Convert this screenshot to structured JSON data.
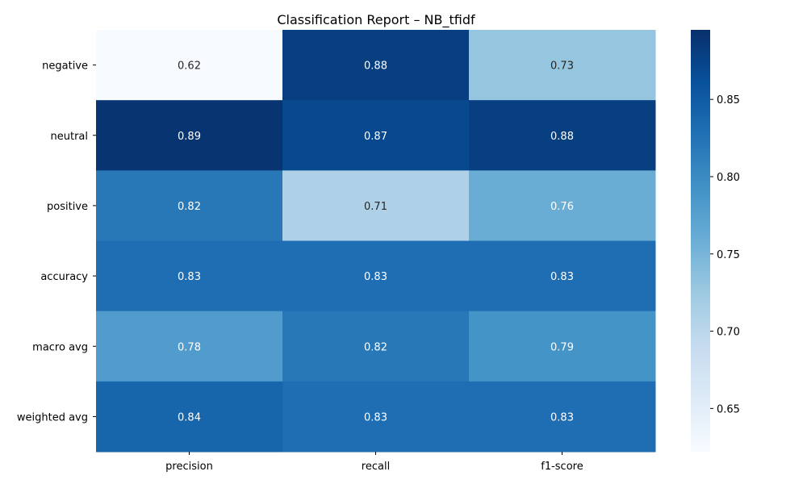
{
  "chart_data": {
    "type": "heatmap",
    "title": "Classification Report – NB_tfidf",
    "rows": [
      "negative",
      "neutral",
      "positive",
      "accuracy",
      "macro avg",
      "weighted avg"
    ],
    "columns": [
      "precision",
      "recall",
      "f1-score"
    ],
    "values": [
      [
        0.62,
        0.88,
        0.73
      ],
      [
        0.89,
        0.87,
        0.88
      ],
      [
        0.82,
        0.71,
        0.76
      ],
      [
        0.83,
        0.83,
        0.83
      ],
      [
        0.78,
        0.82,
        0.79
      ],
      [
        0.84,
        0.83,
        0.83
      ]
    ],
    "colormap": "Blues",
    "vmin": 0.622,
    "vmax": 0.895,
    "colorbar_ticks": [
      "0.65",
      "0.70",
      "0.75",
      "0.80",
      "0.85"
    ]
  }
}
